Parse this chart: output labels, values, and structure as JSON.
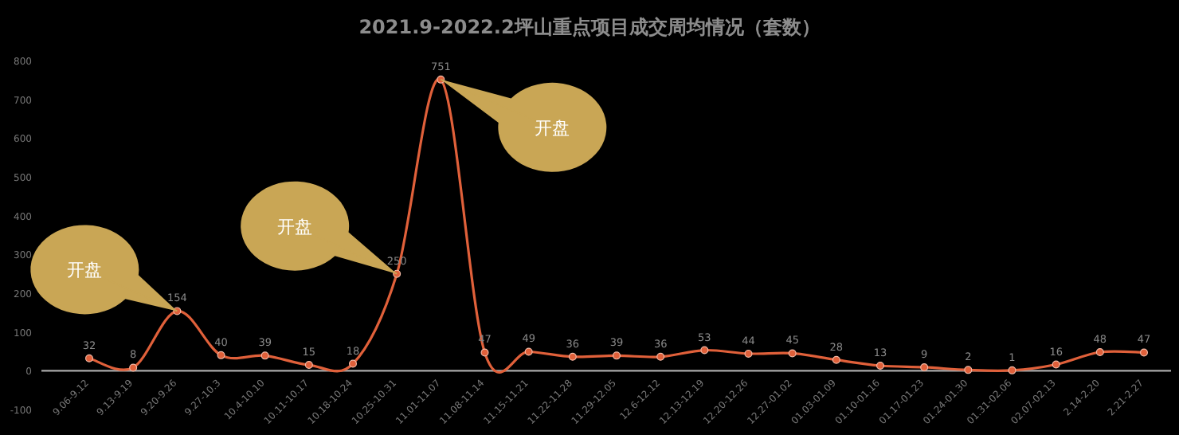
{
  "chart_data": {
    "type": "line",
    "title": "2021.9-2022.2坪山重点项目成交周均情况（套数）",
    "categories": [
      "9.06-9.12",
      "9.13-9.19",
      "9.20-9.26",
      "9.27-10.3",
      "10.4-10.10",
      "10.11-10.17",
      "10.18-10.24",
      "10.25-10.31",
      "11.01-11.07",
      "11.08-11.14",
      "11.15-11.21",
      "11.22-11.28",
      "11.29-12.05",
      "12.6-12.12",
      "12.13-12.19",
      "12.20-12.26",
      "12.27-01.02",
      "01.03-01.09",
      "01.10-01.16",
      "01.17-01.23",
      "01.24-01.30",
      "01.31-02.06",
      "02.07-02.13",
      "2.14-2.20",
      "2.21-2.27"
    ],
    "series": [
      {
        "color": "#e0603a",
        "values": [
          32,
          8,
          154,
          40,
          39,
          15,
          18,
          250,
          751,
          47,
          49,
          36,
          39,
          36,
          53,
          44,
          45,
          28,
          13,
          9,
          2,
          1,
          16,
          48,
          47
        ]
      }
    ],
    "ylim": [
      -100,
      800
    ],
    "yticks": [
      -100,
      0,
      100,
      200,
      300,
      400,
      500,
      600,
      700,
      800
    ],
    "data_labels": true,
    "marker": "circle",
    "line_style": "solid",
    "grid": false,
    "annotations": [
      {
        "text": "开盘",
        "x": "9.20-9.26",
        "y": 154
      },
      {
        "text": "开盘",
        "x": "10.25-10.31",
        "y": 250
      },
      {
        "text": "开盘",
        "x": "11.01-11.07",
        "y": 751
      }
    ]
  }
}
